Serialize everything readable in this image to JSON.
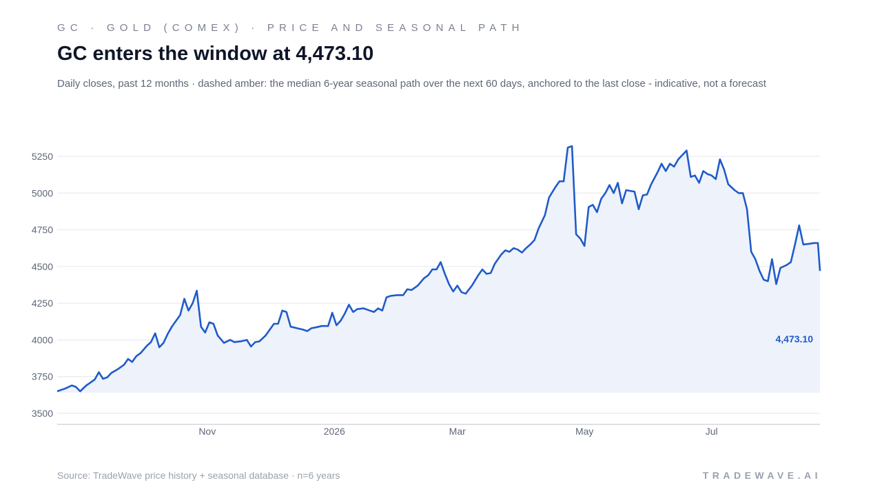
{
  "header": {
    "kicker": "GC · GOLD (COMEX) · PRICE AND SEASONAL PATH",
    "title": "GC enters the window at 4,473.10",
    "subtitle": "Daily closes, past 12 months · dashed amber: the median 6-year seasonal path over the next 60 days, anchored to the last close - indicative, not a forecast"
  },
  "footer": {
    "source": "Source: TradeWave price history + seasonal database · n=6 years",
    "brand": "TRADEWAVE.AI"
  },
  "colors": {
    "line": "#1f5bc8",
    "fill": "#eef2fb",
    "grid": "#e3e6ec",
    "axis_text": "#5d6677"
  },
  "chart_data": {
    "type": "area",
    "title": "GC enters the window at 4,473.10",
    "xlabel": "",
    "ylabel": "",
    "ylim": [
      3500,
      5250
    ],
    "y_ticks": [
      3500,
      3750,
      4000,
      4250,
      4500,
      4750,
      5000,
      5250
    ],
    "y_tick_labels": [
      "3500",
      "3750",
      "4000",
      "4250",
      "4500",
      "4750",
      "5000",
      "5250"
    ],
    "x_tick_labels": [
      {
        "label": "Nov",
        "date": "2025-11-01"
      },
      {
        "label": "2026",
        "date": "2026-01-01"
      },
      {
        "label": "Mar",
        "date": "2026-03-01"
      },
      {
        "label": "May",
        "date": "2026-05-01"
      },
      {
        "label": "Jul",
        "date": "2026-07-01"
      }
    ],
    "x_range": [
      "2025-08-21",
      "2026-08-22"
    ],
    "grid": true,
    "last_value_label": "4,473.10",
    "series": [
      {
        "points": [
          [
            "2025-08-21",
            3650
          ],
          [
            "2025-08-25",
            3670
          ],
          [
            "2025-08-28",
            3690
          ],
          [
            "2025-08-30",
            3680
          ],
          [
            "2025-09-01",
            3650
          ],
          [
            "2025-09-04",
            3690
          ],
          [
            "2025-09-08",
            3730
          ],
          [
            "2025-09-10",
            3780
          ],
          [
            "2025-09-12",
            3735
          ],
          [
            "2025-09-14",
            3745
          ],
          [
            "2025-09-16",
            3775
          ],
          [
            "2025-09-19",
            3800
          ],
          [
            "2025-09-22",
            3830
          ],
          [
            "2025-09-24",
            3870
          ],
          [
            "2025-09-26",
            3850
          ],
          [
            "2025-09-28",
            3890
          ],
          [
            "2025-09-30",
            3910
          ],
          [
            "2025-10-03",
            3960
          ],
          [
            "2025-10-05",
            3985
          ],
          [
            "2025-10-07",
            4045
          ],
          [
            "2025-10-09",
            3950
          ],
          [
            "2025-10-11",
            3980
          ],
          [
            "2025-10-13",
            4040
          ],
          [
            "2025-10-15",
            4090
          ],
          [
            "2025-10-17",
            4130
          ],
          [
            "2025-10-19",
            4170
          ],
          [
            "2025-10-21",
            4280
          ],
          [
            "2025-10-23",
            4200
          ],
          [
            "2025-10-25",
            4250
          ],
          [
            "2025-10-27",
            4335
          ],
          [
            "2025-10-29",
            4090
          ],
          [
            "2025-10-31",
            4050
          ],
          [
            "2025-11-02",
            4120
          ],
          [
            "2025-11-04",
            4110
          ],
          [
            "2025-11-06",
            4030
          ],
          [
            "2025-11-09",
            3980
          ],
          [
            "2025-11-12",
            4000
          ],
          [
            "2025-11-14",
            3985
          ],
          [
            "2025-11-17",
            3990
          ],
          [
            "2025-11-20",
            4000
          ],
          [
            "2025-11-22",
            3955
          ],
          [
            "2025-11-24",
            3985
          ],
          [
            "2025-11-26",
            3990
          ],
          [
            "2025-11-29",
            4030
          ],
          [
            "2025-12-01",
            4070
          ],
          [
            "2025-12-03",
            4110
          ],
          [
            "2025-12-05",
            4110
          ],
          [
            "2025-12-07",
            4200
          ],
          [
            "2025-12-09",
            4190
          ],
          [
            "2025-12-11",
            4090
          ],
          [
            "2025-12-14",
            4080
          ],
          [
            "2025-12-17",
            4070
          ],
          [
            "2025-12-19",
            4060
          ],
          [
            "2025-12-21",
            4080
          ],
          [
            "2025-12-23",
            4085
          ],
          [
            "2025-12-26",
            4095
          ],
          [
            "2025-12-29",
            4095
          ],
          [
            "2025-12-31",
            4185
          ],
          [
            "2026-01-02",
            4100
          ],
          [
            "2026-01-04",
            4130
          ],
          [
            "2026-01-06",
            4180
          ],
          [
            "2026-01-08",
            4240
          ],
          [
            "2026-01-10",
            4190
          ],
          [
            "2026-01-12",
            4210
          ],
          [
            "2026-01-15",
            4215
          ],
          [
            "2026-01-18",
            4200
          ],
          [
            "2026-01-20",
            4190
          ],
          [
            "2026-01-22",
            4215
          ],
          [
            "2026-01-24",
            4200
          ],
          [
            "2026-01-26",
            4290
          ],
          [
            "2026-01-28",
            4300
          ],
          [
            "2026-01-31",
            4305
          ],
          [
            "2026-02-03",
            4305
          ],
          [
            "2026-02-05",
            4345
          ],
          [
            "2026-02-07",
            4340
          ],
          [
            "2026-02-10",
            4370
          ],
          [
            "2026-02-13",
            4420
          ],
          [
            "2026-02-15",
            4440
          ],
          [
            "2026-02-17",
            4480
          ],
          [
            "2026-02-19",
            4480
          ],
          [
            "2026-02-21",
            4530
          ],
          [
            "2026-02-23",
            4450
          ],
          [
            "2026-02-25",
            4380
          ],
          [
            "2026-02-27",
            4330
          ],
          [
            "2026-03-01",
            4370
          ],
          [
            "2026-03-03",
            4325
          ],
          [
            "2026-03-05",
            4315
          ],
          [
            "2026-03-08",
            4370
          ],
          [
            "2026-03-11",
            4440
          ],
          [
            "2026-03-13",
            4480
          ],
          [
            "2026-03-15",
            4450
          ],
          [
            "2026-03-17",
            4455
          ],
          [
            "2026-03-19",
            4520
          ],
          [
            "2026-03-22",
            4580
          ],
          [
            "2026-03-24",
            4610
          ],
          [
            "2026-03-26",
            4600
          ],
          [
            "2026-03-28",
            4625
          ],
          [
            "2026-03-30",
            4615
          ],
          [
            "2026-04-01",
            4595
          ],
          [
            "2026-04-03",
            4625
          ],
          [
            "2026-04-05",
            4650
          ],
          [
            "2026-04-07",
            4680
          ],
          [
            "2026-04-09",
            4760
          ],
          [
            "2026-04-12",
            4850
          ],
          [
            "2026-04-14",
            4970
          ],
          [
            "2026-04-17",
            5040
          ],
          [
            "2026-04-19",
            5080
          ],
          [
            "2026-04-21",
            5080
          ],
          [
            "2026-04-23",
            5310
          ],
          [
            "2026-04-25",
            5320
          ],
          [
            "2026-04-27",
            4720
          ],
          [
            "2026-04-29",
            4690
          ],
          [
            "2026-05-01",
            4640
          ],
          [
            "2026-05-03",
            4905
          ],
          [
            "2026-05-05",
            4920
          ],
          [
            "2026-05-07",
            4870
          ],
          [
            "2026-05-09",
            4960
          ],
          [
            "2026-05-11",
            5000
          ],
          [
            "2026-05-13",
            5055
          ],
          [
            "2026-05-15",
            5000
          ],
          [
            "2026-05-17",
            5070
          ],
          [
            "2026-05-19",
            4930
          ],
          [
            "2026-05-21",
            5020
          ],
          [
            "2026-05-23",
            5015
          ],
          [
            "2026-05-25",
            5010
          ],
          [
            "2026-05-27",
            4890
          ],
          [
            "2026-05-29",
            4985
          ],
          [
            "2026-05-31",
            4990
          ],
          [
            "2026-06-02",
            5060
          ],
          [
            "2026-06-05",
            5140
          ],
          [
            "2026-06-07",
            5200
          ],
          [
            "2026-06-09",
            5150
          ],
          [
            "2026-06-11",
            5200
          ],
          [
            "2026-06-13",
            5180
          ],
          [
            "2026-06-15",
            5230
          ],
          [
            "2026-06-17",
            5260
          ],
          [
            "2026-06-19",
            5290
          ],
          [
            "2026-06-21",
            5110
          ],
          [
            "2026-06-23",
            5120
          ],
          [
            "2026-06-25",
            5070
          ],
          [
            "2026-06-27",
            5150
          ],
          [
            "2026-06-29",
            5130
          ],
          [
            "2026-07-01",
            5120
          ],
          [
            "2026-07-03",
            5095
          ],
          [
            "2026-07-05",
            5230
          ],
          [
            "2026-07-07",
            5160
          ],
          [
            "2026-07-09",
            5060
          ],
          [
            "2026-07-12",
            5020
          ],
          [
            "2026-07-14",
            5000
          ],
          [
            "2026-07-16",
            5000
          ],
          [
            "2026-07-18",
            4890
          ],
          [
            "2026-07-20",
            4600
          ],
          [
            "2026-07-22",
            4550
          ],
          [
            "2026-07-24",
            4470
          ],
          [
            "2026-07-26",
            4410
          ],
          [
            "2026-07-28",
            4400
          ],
          [
            "2026-07-30",
            4550
          ],
          [
            "2026-08-01",
            4380
          ],
          [
            "2026-08-03",
            4490
          ],
          [
            "2026-08-06",
            4510
          ],
          [
            "2026-08-08",
            4530
          ],
          [
            "2026-08-10",
            4650
          ],
          [
            "2026-08-12",
            4780
          ],
          [
            "2026-08-14",
            4650
          ],
          [
            "2026-08-17",
            4655
          ],
          [
            "2026-08-19",
            4660
          ],
          [
            "2026-08-21",
            4660
          ],
          [
            "2026-08-22",
            4470
          ]
        ]
      }
    ]
  }
}
